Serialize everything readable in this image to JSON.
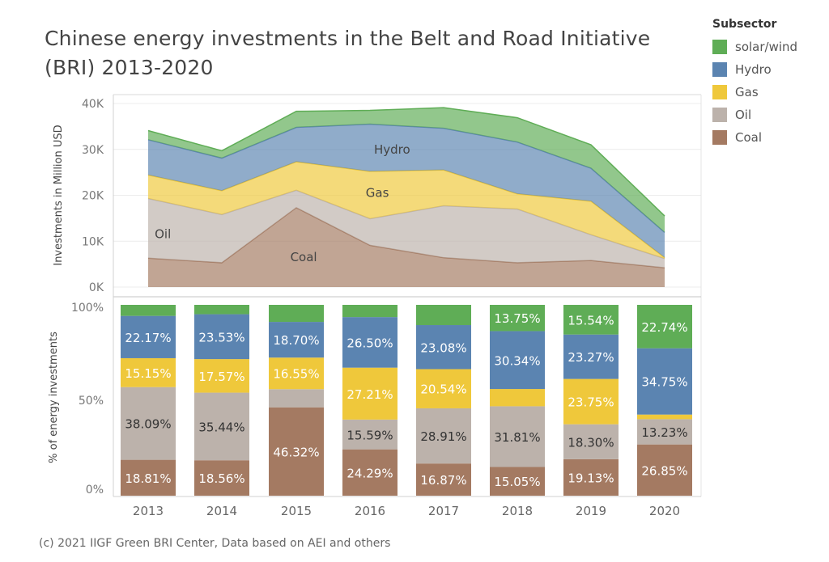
{
  "title": "Chinese energy investments in the Belt and Road Initiative (BRI) 2013-2020",
  "footnote": "(c) 2021 IIGF Green BRI Center, Data based on AEI and others",
  "legend": {
    "title": "Subsector",
    "items": [
      {
        "label": "solar/wind",
        "color": "#5fad56"
      },
      {
        "label": "Hydro",
        "color": "#5b84b1"
      },
      {
        "label": "Gas",
        "color": "#efc83b"
      },
      {
        "label": "Oil",
        "color": "#bcb2ab"
      },
      {
        "label": "Coal",
        "color": "#a47a62"
      }
    ]
  },
  "chart_data": [
    {
      "type": "area",
      "stacked": true,
      "ylabel": "Investments in Million USD",
      "ylim": [
        0,
        40000
      ],
      "yticks": [
        "0K",
        "10K",
        "20K",
        "30K",
        "40K"
      ],
      "categories": [
        "2013",
        "2014",
        "2015",
        "2016",
        "2017",
        "2018",
        "2019",
        "2020"
      ],
      "series": [
        {
          "name": "Coal",
          "values": [
            6300,
            5300,
            17300,
            9100,
            6400,
            5300,
            5800,
            4200
          ]
        },
        {
          "name": "Oil",
          "values": [
            13000,
            10500,
            3800,
            5800,
            11300,
            11700,
            5600,
            2000
          ]
        },
        {
          "name": "Gas",
          "values": [
            5100,
            5200,
            6200,
            10300,
            7800,
            3300,
            7300,
            200
          ]
        },
        {
          "name": "Hydro",
          "values": [
            7700,
            7100,
            7500,
            10300,
            9100,
            11300,
            7200,
            5500
          ]
        },
        {
          "name": "solar/wind",
          "values": [
            2000,
            1600,
            3500,
            3000,
            4500,
            5300,
            5100,
            3600
          ]
        }
      ],
      "area_labels": [
        {
          "text": "Hydro",
          "x": "2016.3",
          "y": 30000
        },
        {
          "text": "Gas",
          "x": "2016.1",
          "y": 20500
        },
        {
          "text": "Oil",
          "x": "2013.2",
          "y": 11500
        },
        {
          "text": "Coal",
          "x": "2015.1",
          "y": 6500
        }
      ],
      "grid": true
    },
    {
      "type": "bar",
      "stacked": true,
      "ylabel": "% of energy investments",
      "ylim": [
        0,
        100
      ],
      "yticks": [
        "0%",
        "50%",
        "100%"
      ],
      "categories": [
        "2013",
        "2014",
        "2015",
        "2016",
        "2017",
        "2018",
        "2019",
        "2020"
      ],
      "series": [
        {
          "name": "Coal",
          "values": [
            18.81,
            18.56,
            46.32,
            24.29,
            16.87,
            15.05,
            19.13,
            26.85
          ],
          "labels": [
            "18.81%",
            "18.56%",
            "46.32%",
            "24.29%",
            "16.87%",
            "15.05%",
            "19.13%",
            "26.85%"
          ]
        },
        {
          "name": "Oil",
          "values": [
            38.09,
            35.44,
            9.5,
            15.59,
            28.91,
            31.81,
            18.3,
            13.23
          ],
          "labels": [
            "38.09%",
            "35.44%",
            "",
            "15.59%",
            "28.91%",
            "31.81%",
            "18.30%",
            "13.23%"
          ]
        },
        {
          "name": "Gas",
          "values": [
            15.15,
            17.57,
            16.55,
            27.21,
            20.54,
            9.05,
            23.75,
            2.43
          ],
          "labels": [
            "15.15%",
            "17.57%",
            "16.55%",
            "27.21%",
            "20.54%",
            "",
            "23.75%",
            ""
          ]
        },
        {
          "name": "Hydro",
          "values": [
            22.17,
            23.53,
            18.7,
            26.5,
            23.08,
            30.34,
            23.27,
            34.75
          ],
          "labels": [
            "22.17%",
            "23.53%",
            "18.70%",
            "26.50%",
            "23.08%",
            "30.34%",
            "23.27%",
            "34.75%"
          ]
        },
        {
          "name": "solar/wind",
          "values": [
            5.78,
            4.9,
            8.93,
            6.41,
            10.6,
            13.75,
            15.54,
            22.74
          ],
          "labels": [
            "",
            "",
            "",
            "",
            "",
            "13.75%",
            "15.54%",
            "22.74%"
          ]
        }
      ]
    }
  ]
}
